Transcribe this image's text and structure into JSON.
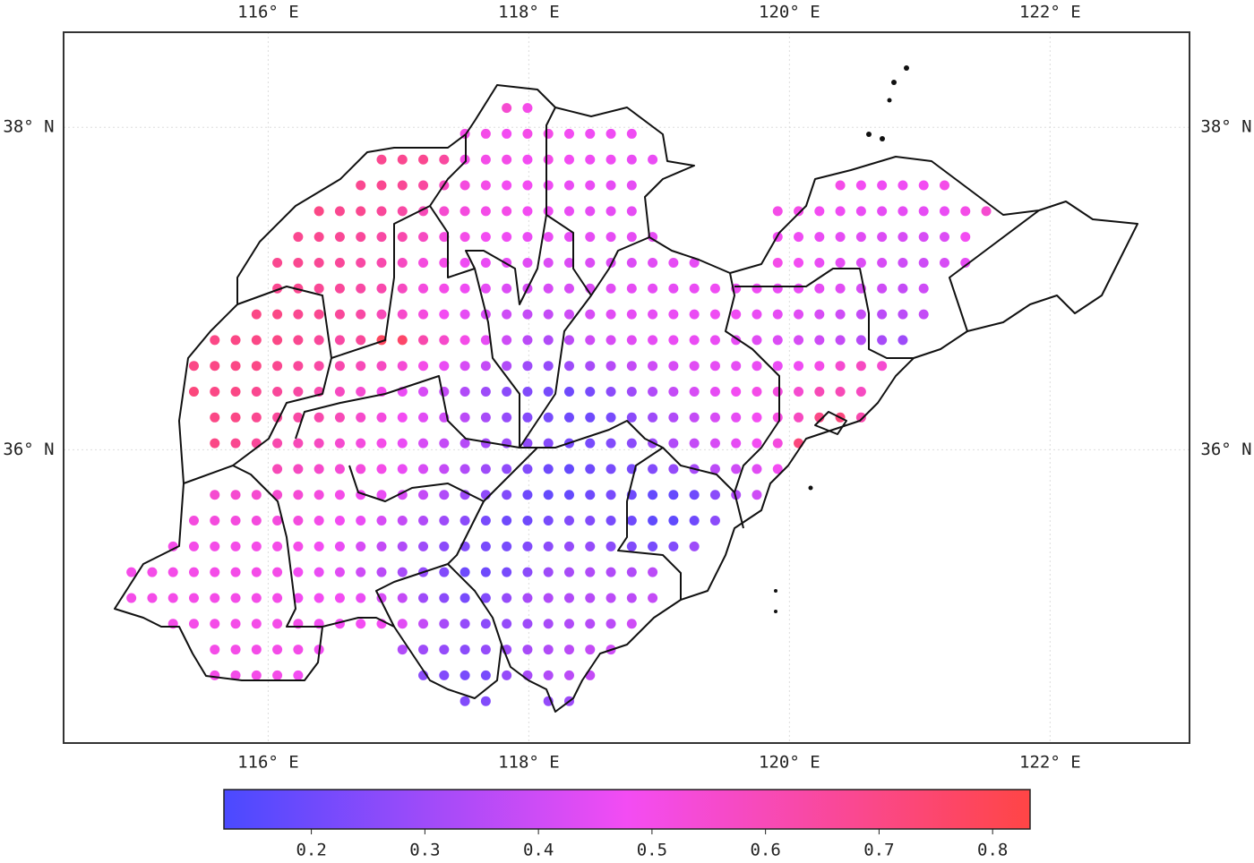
{
  "chart_data": {
    "type": "map",
    "xlim": [
      114.43,
      123.07
    ],
    "ylim": [
      34.18,
      38.59
    ],
    "xticks": [
      {
        "value": 116,
        "label": "116° E"
      },
      {
        "value": 118,
        "label": "118° E"
      },
      {
        "value": 120,
        "label": "120° E"
      },
      {
        "value": 122,
        "label": "122° E"
      }
    ],
    "yticks": [
      {
        "value": 36,
        "label": "36° N"
      },
      {
        "value": 38,
        "label": "38° N"
      }
    ],
    "grid": true,
    "spacing": 0.16,
    "colormap": [
      "#4a4aff",
      "#f34cf3",
      "#ff4545"
    ],
    "clim": [
      0.123,
      0.833
    ],
    "cticks": [
      0.2,
      0.3,
      0.4,
      0.5,
      0.6,
      0.7,
      0.8
    ],
    "rows": [
      {
        "lat": 38.12,
        "lon": 117.83,
        "values": [
          0.55,
          0.5
        ]
      },
      {
        "lat": 37.96,
        "lon": 117.51,
        "values": [
          0.5,
          0.5,
          0.48,
          0.5,
          0.5,
          0.48,
          0.47,
          0.47,
          0.47
        ]
      },
      {
        "lat": 37.8,
        "lon": 116.87,
        "values": [
          0.68,
          0.68,
          0.68,
          0.65,
          0.5,
          0.5,
          0.5,
          0.48,
          0.5,
          0.48,
          0.47,
          0.47,
          0.46,
          0.46
        ]
      },
      {
        "lat": 37.64,
        "lon": 116.71,
        "values": [
          0.68,
          0.68,
          0.67,
          0.65,
          0.58,
          0.52,
          0.5,
          0.48,
          0.48,
          0.47,
          0.46,
          0.46,
          0.45,
          0.45,
          null,
          null,
          null,
          null,
          null,
          null,
          null,
          null,
          null,
          0.5,
          0.48,
          0.47,
          0.47,
          0.48,
          0.5
        ]
      },
      {
        "lat": 37.48,
        "lon": 116.39,
        "values": [
          0.7,
          0.68,
          0.68,
          0.66,
          0.64,
          0.6,
          0.55,
          0.52,
          0.5,
          0.5,
          0.48,
          0.47,
          0.46,
          0.45,
          0.45,
          0.45,
          null,
          null,
          null,
          null,
          null,
          null,
          0.5,
          0.5,
          0.48,
          0.47,
          0.46,
          0.45,
          0.45,
          0.45,
          0.46,
          0.5,
          0.55
        ]
      },
      {
        "lat": 37.32,
        "lon": 116.23,
        "values": [
          0.68,
          0.68,
          0.67,
          0.66,
          0.64,
          0.62,
          0.58,
          0.52,
          0.5,
          0.48,
          0.47,
          0.46,
          0.46,
          0.45,
          0.45,
          0.45,
          0.45,
          0.45,
          null,
          null,
          null,
          null,
          null,
          0.48,
          0.47,
          0.46,
          0.45,
          0.44,
          0.43,
          0.42,
          0.42,
          0.43,
          0.48
        ]
      },
      {
        "lat": 37.16,
        "lon": 116.07,
        "values": [
          0.68,
          0.68,
          0.67,
          0.66,
          0.64,
          0.62,
          0.58,
          0.52,
          0.5,
          0.47,
          0.46,
          0.45,
          0.44,
          0.43,
          0.43,
          0.43,
          0.43,
          0.43,
          0.44,
          0.45,
          0.45,
          null,
          null,
          null,
          0.5,
          0.48,
          0.46,
          0.45,
          0.43,
          0.42,
          0.4,
          0.4,
          0.42,
          0.45
        ]
      },
      {
        "lat": 37.0,
        "lon": 116.07,
        "values": [
          0.68,
          0.68,
          0.67,
          0.66,
          0.64,
          0.62,
          0.58,
          0.52,
          0.5,
          0.47,
          0.45,
          0.43,
          0.42,
          0.42,
          0.42,
          0.43,
          0.44,
          0.45,
          0.45,
          0.45,
          0.46,
          0.47,
          0.47,
          0.47,
          0.46,
          0.46,
          0.45,
          0.44,
          0.42,
          0.4,
          0.38,
          0.4
        ]
      },
      {
        "lat": 36.84,
        "lon": 115.91,
        "values": [
          0.7,
          0.7,
          0.68,
          0.68,
          0.66,
          0.64,
          0.6,
          0.56,
          0.52,
          0.48,
          0.45,
          0.42,
          0.4,
          0.38,
          0.38,
          0.4,
          0.42,
          0.44,
          0.45,
          0.45,
          0.46,
          0.46,
          0.47,
          0.47,
          0.46,
          0.45,
          0.44,
          0.42,
          0.4,
          0.38,
          0.36,
          0.36,
          0.38
        ]
      },
      {
        "lat": 36.68,
        "lon": 115.59,
        "values": [
          0.7,
          0.7,
          0.7,
          0.7,
          0.68,
          0.66,
          0.64,
          0.66,
          0.78,
          0.76,
          0.62,
          0.56,
          0.5,
          0.45,
          0.4,
          0.36,
          0.34,
          0.36,
          0.4,
          0.42,
          0.44,
          0.45,
          0.46,
          0.46,
          0.46,
          0.45,
          0.44,
          0.43,
          0.42,
          0.4,
          0.38,
          0.35,
          0.32,
          0.3
        ]
      },
      {
        "lat": 36.52,
        "lon": 115.43,
        "values": [
          0.7,
          0.7,
          0.7,
          0.7,
          0.68,
          0.66,
          0.64,
          0.62,
          0.6,
          0.58,
          0.54,
          0.5,
          0.46,
          0.42,
          0.38,
          0.34,
          0.3,
          0.28,
          0.3,
          0.32,
          0.35,
          0.38,
          0.4,
          0.42,
          0.44,
          0.45,
          0.45,
          0.46,
          0.46,
          0.47,
          0.5,
          0.55,
          0.58,
          0.55
        ]
      },
      {
        "lat": 36.36,
        "lon": 115.43,
        "values": [
          0.72,
          0.7,
          0.7,
          0.68,
          0.66,
          0.64,
          0.62,
          0.58,
          0.55,
          0.5,
          0.46,
          0.42,
          0.38,
          0.34,
          0.3,
          0.26,
          0.24,
          0.22,
          0.2,
          0.22,
          0.26,
          0.3,
          0.34,
          0.38,
          0.42,
          0.45,
          0.48,
          0.5,
          0.52,
          0.55,
          0.6,
          0.6,
          0.58
        ]
      },
      {
        "lat": 36.2,
        "lon": 115.59,
        "values": [
          0.7,
          0.7,
          0.68,
          0.66,
          0.64,
          0.62,
          0.6,
          0.56,
          0.52,
          0.48,
          0.44,
          0.4,
          0.36,
          0.32,
          0.28,
          0.25,
          0.22,
          0.2,
          0.2,
          0.22,
          0.26,
          0.3,
          0.34,
          0.38,
          0.42,
          0.45,
          0.48,
          0.52,
          0.58,
          0.7,
          0.72,
          0.62
        ]
      },
      {
        "lat": 36.04,
        "lon": 115.59,
        "values": [
          0.7,
          0.68,
          0.66,
          0.62,
          0.6,
          0.58,
          0.55,
          0.52,
          0.5,
          0.46,
          0.42,
          0.38,
          0.35,
          0.32,
          0.3,
          0.27,
          0.25,
          0.22,
          0.22,
          0.24,
          0.26,
          0.3,
          0.34,
          0.38,
          0.42,
          0.45,
          0.48,
          0.52,
          0.72
        ]
      },
      {
        "lat": 35.88,
        "lon": 116.07,
        "values": [
          0.6,
          0.58,
          0.56,
          0.54,
          0.52,
          0.5,
          0.46,
          0.42,
          0.38,
          0.34,
          0.3,
          0.27,
          0.24,
          0.2,
          0.18,
          0.2,
          0.22,
          0.22,
          0.24,
          0.28,
          0.32,
          0.36,
          0.4,
          0.44,
          0.48
        ]
      },
      {
        "lat": 35.72,
        "lon": 115.59,
        "values": [
          0.55,
          0.55,
          0.55,
          0.55,
          0.54,
          0.52,
          0.5,
          0.48,
          0.46,
          0.42,
          0.38,
          0.34,
          0.3,
          0.27,
          0.24,
          0.2,
          0.18,
          0.18,
          0.2,
          0.22,
          0.2,
          0.18,
          0.18,
          0.2,
          0.26,
          0.34,
          0.4
        ]
      },
      {
        "lat": 35.56,
        "lon": 115.43,
        "values": [
          0.52,
          0.52,
          0.52,
          0.52,
          0.52,
          0.52,
          0.5,
          0.48,
          0.46,
          0.42,
          0.38,
          0.34,
          0.3,
          0.26,
          0.22,
          0.2,
          0.2,
          0.22,
          0.24,
          0.24,
          0.22,
          0.2,
          0.17,
          0.17,
          0.2,
          0.26
        ]
      },
      {
        "lat": 35.4,
        "lon": 115.27,
        "values": [
          0.5,
          0.5,
          0.5,
          0.5,
          0.5,
          0.5,
          0.5,
          0.48,
          0.46,
          0.42,
          0.38,
          0.34,
          0.3,
          0.26,
          0.24,
          0.22,
          0.22,
          0.24,
          0.26,
          0.28,
          0.28,
          0.26,
          0.24,
          0.22,
          0.24,
          0.3
        ]
      },
      {
        "lat": 35.24,
        "lon": 114.95,
        "values": [
          0.5,
          0.5,
          0.5,
          0.5,
          0.5,
          0.5,
          0.5,
          0.5,
          0.48,
          0.46,
          0.44,
          0.4,
          0.36,
          0.32,
          0.28,
          0.24,
          0.2,
          0.2,
          0.22,
          0.26,
          0.3,
          0.32,
          0.34,
          0.34,
          0.34,
          0.36
        ]
      },
      {
        "lat": 35.08,
        "lon": 114.95,
        "values": [
          0.5,
          0.5,
          0.5,
          0.5,
          0.5,
          0.5,
          0.5,
          0.5,
          0.48,
          0.48,
          0.48,
          0.46,
          0.42,
          0.38,
          0.3,
          0.26,
          0.22,
          0.24,
          0.28,
          0.32,
          0.34,
          0.34,
          0.35,
          0.36,
          0.36,
          0.38
        ]
      },
      {
        "lat": 34.92,
        "lon": 115.27,
        "values": [
          0.5,
          0.5,
          0.5,
          0.5,
          0.5,
          0.5,
          0.5,
          0.48,
          0.48,
          0.48,
          0.48,
          0.44,
          0.38,
          0.32,
          0.28,
          0.26,
          0.28,
          0.3,
          0.32,
          0.34,
          0.35,
          0.36,
          0.4
        ]
      },
      {
        "lat": 34.76,
        "lon": 115.59,
        "values": [
          0.5,
          0.5,
          0.5,
          0.5,
          0.5,
          0.48,
          null,
          null,
          null,
          0.34,
          0.3,
          0.28,
          0.26,
          0.28,
          0.3,
          0.32,
          0.34,
          0.36,
          0.38,
          0.4
        ]
      },
      {
        "lat": 34.6,
        "lon": 115.59,
        "values": [
          0.5,
          0.5,
          0.5,
          0.5,
          0.48,
          null,
          null,
          null,
          null,
          null,
          0.26,
          0.24,
          0.22,
          0.22,
          0.28,
          0.32,
          0.34,
          0.36,
          0.38
        ]
      },
      {
        "lat": 34.44,
        "lon": 117.51,
        "values": [
          0.24,
          0.24,
          null,
          null,
          0.28,
          0.3
        ]
      }
    ]
  }
}
